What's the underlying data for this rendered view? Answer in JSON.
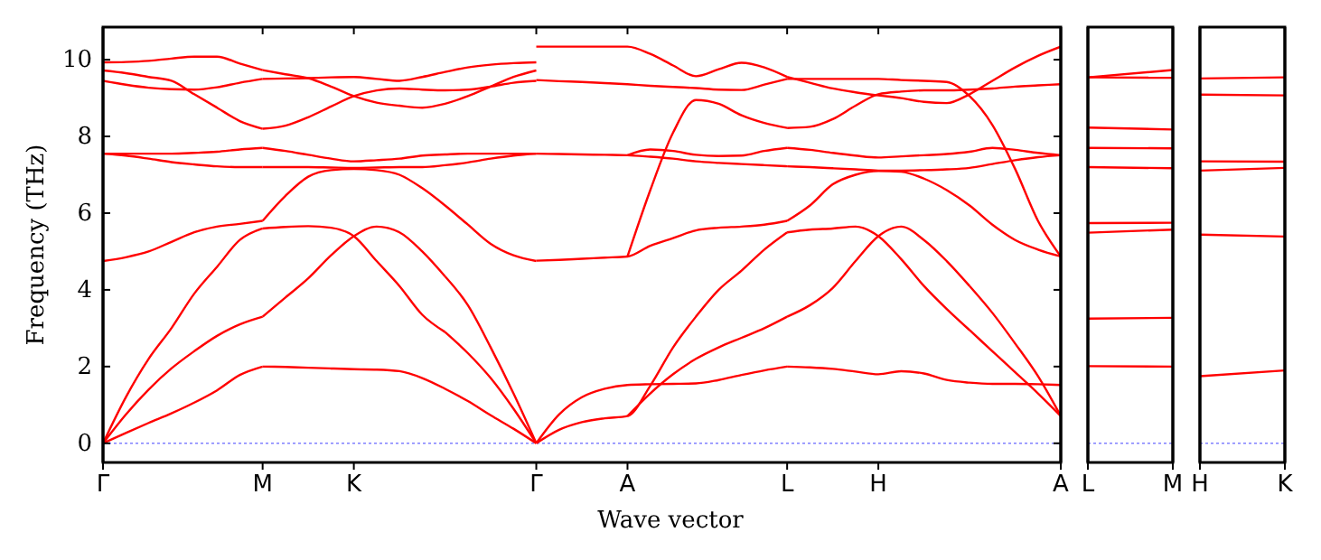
{
  "chart_data": [
    {
      "type": "line",
      "xlabel": "Wave vector",
      "ylabel": "Frequency (THz)",
      "ylim": [
        -0.5,
        10.85
      ],
      "yticks": [
        0,
        2,
        4,
        6,
        8,
        10
      ],
      "categories": [
        "Γ",
        null,
        null,
        null,
        null,
        null,
        null,
        "M",
        null,
        null,
        null,
        "K",
        null,
        null,
        null,
        null,
        null,
        null,
        null,
        "Γ",
        null,
        null,
        null,
        "A",
        null,
        null,
        null,
        null,
        null,
        null,
        "L",
        null,
        null,
        null,
        "H",
        null,
        null,
        null,
        null,
        null,
        null,
        null,
        "A"
      ],
      "ref_lines": [
        {
          "axis": "y",
          "value": 0,
          "color": "#8080ff",
          "line_style": "dotted"
        }
      ],
      "series": [
        {
          "color": "#ff0000",
          "values": [
            0,
            0.27,
            0.53,
            0.78,
            1.06,
            1.38,
            1.78,
            2.0,
            null,
            null,
            null,
            null,
            null,
            null,
            null,
            null,
            null,
            null,
            null,
            null,
            null,
            null,
            null,
            null,
            null,
            null,
            null,
            null,
            null,
            null,
            null,
            null,
            null,
            null,
            null,
            null,
            null,
            null,
            null,
            null,
            null,
            null,
            null
          ]
        },
        {
          "color": "#ff0000",
          "values": [
            0,
            0.75,
            1.4,
            1.95,
            2.4,
            2.8,
            3.1,
            3.3,
            null,
            null,
            null,
            null,
            null,
            null,
            null,
            null,
            null,
            null,
            null,
            null,
            null,
            null,
            null,
            null,
            null,
            null,
            null,
            null,
            null,
            null,
            null,
            null,
            null,
            null,
            null,
            null,
            null,
            null,
            null,
            null,
            null,
            null,
            null
          ]
        },
        {
          "color": "#ff0000",
          "values": [
            0,
            1.2,
            2.2,
            3.0,
            3.9,
            4.6,
            5.3,
            5.6,
            null,
            null,
            null,
            null,
            null,
            null,
            null,
            null,
            null,
            null,
            null,
            null,
            null,
            null,
            null,
            null,
            null,
            null,
            null,
            null,
            null,
            null,
            null,
            null,
            null,
            null,
            null,
            null,
            null,
            null,
            null,
            null,
            null,
            null,
            null
          ]
        },
        {
          "color": "#ff0000",
          "values": [
            4.75,
            4.85,
            5.0,
            5.25,
            5.5,
            5.65,
            5.72,
            5.8,
            null,
            null,
            null,
            null,
            null,
            null,
            null,
            null,
            null,
            null,
            null,
            null,
            null,
            null,
            null,
            null,
            null,
            null,
            null,
            null,
            null,
            null,
            null,
            null,
            null,
            null,
            null,
            null,
            null,
            null,
            null,
            null,
            null,
            null,
            null
          ]
        },
        {
          "color": "#ff0000",
          "values": [
            7.55,
            7.5,
            7.42,
            7.33,
            7.27,
            7.22,
            7.2,
            7.2,
            null,
            null,
            null,
            null,
            null,
            null,
            null,
            null,
            null,
            null,
            null,
            null,
            null,
            null,
            null,
            null,
            null,
            null,
            null,
            null,
            null,
            null,
            null,
            null,
            null,
            null,
            null,
            null,
            null,
            null,
            null,
            null,
            null,
            null,
            null
          ]
        },
        {
          "color": "#ff0000",
          "values": [
            7.55,
            7.55,
            7.55,
            7.55,
            7.57,
            7.6,
            7.66,
            7.7,
            null,
            null,
            null,
            null,
            null,
            null,
            null,
            null,
            null,
            null,
            null,
            null,
            null,
            null,
            null,
            null,
            null,
            null,
            null,
            null,
            null,
            null,
            null,
            null,
            null,
            null,
            null,
            null,
            null,
            null,
            null,
            null,
            null,
            null,
            null
          ]
        },
        {
          "color": "#ff0000",
          "values": [
            9.72,
            9.65,
            9.55,
            9.45,
            9.1,
            8.75,
            8.4,
            8.2,
            null,
            null,
            null,
            null,
            null,
            null,
            null,
            null,
            null,
            null,
            null,
            null,
            null,
            null,
            null,
            null,
            null,
            null,
            null,
            null,
            null,
            null,
            null,
            null,
            null,
            null,
            null,
            null,
            null,
            null,
            null,
            null,
            null,
            null,
            null
          ]
        },
        {
          "color": "#ff0000",
          "values": [
            9.45,
            9.35,
            9.27,
            9.23,
            9.22,
            9.28,
            9.4,
            9.5,
            null,
            null,
            null,
            null,
            null,
            null,
            null,
            null,
            null,
            null,
            null,
            null,
            null,
            null,
            null,
            null,
            null,
            null,
            null,
            null,
            null,
            null,
            null,
            null,
            null,
            null,
            null,
            null,
            null,
            null,
            null,
            null,
            null,
            null,
            null
          ]
        },
        {
          "color": "#ff0000",
          "values": [
            9.93,
            9.94,
            9.97,
            10.03,
            10.08,
            10.08,
            9.9,
            9.73,
            null,
            null,
            null,
            null,
            null,
            null,
            null,
            null,
            null,
            null,
            null,
            null,
            null,
            null,
            null,
            null,
            null,
            null,
            null,
            null,
            null,
            null,
            null,
            null,
            null,
            null,
            null,
            null,
            null,
            null,
            null,
            null,
            null,
            null,
            null
          ]
        },
        {
          "color": "#ff0000",
          "values": [
            null,
            null,
            null,
            null,
            null,
            null,
            null,
            2.0,
            1.99,
            1.97,
            1.95,
            1.93,
            1.92,
            1.88,
            1.7,
            1.42,
            1.1,
            0.73,
            0.38,
            0,
            null,
            null,
            null,
            null,
            null,
            null,
            null,
            null,
            null,
            null,
            null,
            null,
            null,
            null,
            null,
            null,
            null,
            null,
            null,
            null,
            null,
            null,
            null
          ]
        },
        {
          "color": "#ff0000",
          "values": [
            null,
            null,
            null,
            null,
            null,
            null,
            null,
            3.3,
            3.8,
            4.3,
            4.9,
            5.4,
            5.65,
            5.5,
            5.0,
            4.35,
            null,
            null,
            null,
            null,
            null,
            null,
            null,
            null,
            null,
            null,
            null,
            null,
            null,
            null,
            null,
            null,
            null,
            null,
            null,
            null,
            null,
            null,
            null,
            null,
            null,
            null,
            null
          ]
        },
        {
          "color": "#ff0000",
          "values": [
            null,
            null,
            null,
            null,
            null,
            null,
            null,
            null,
            null,
            null,
            null,
            null,
            null,
            null,
            null,
            4.35,
            3.6,
            2.5,
            1.3,
            0,
            null,
            null,
            null,
            null,
            null,
            null,
            null,
            null,
            null,
            null,
            null,
            null,
            null,
            null,
            null,
            null,
            null,
            null,
            null,
            null,
            null,
            null,
            null
          ]
        },
        {
          "color": "#ff0000",
          "values": [
            null,
            null,
            null,
            null,
            null,
            null,
            null,
            5.6,
            5.64,
            5.66,
            5.62,
            5.4,
            4.75,
            4.1,
            3.35,
            2.9,
            null,
            null,
            null,
            null,
            null,
            null,
            null,
            null,
            null,
            null,
            null,
            null,
            null,
            null,
            null,
            null,
            null,
            null,
            null,
            null,
            null,
            null,
            null,
            null,
            null,
            null,
            null
          ]
        },
        {
          "color": "#ff0000",
          "values": [
            null,
            null,
            null,
            null,
            null,
            null,
            null,
            null,
            null,
            null,
            null,
            null,
            null,
            null,
            null,
            2.9,
            2.35,
            1.7,
            0.9,
            0,
            null,
            null,
            null,
            null,
            null,
            null,
            null,
            null,
            null,
            null,
            null,
            null,
            null,
            null,
            null,
            null,
            null,
            null,
            null,
            null,
            null,
            null,
            null
          ]
        },
        {
          "color": "#ff0000",
          "values": [
            null,
            null,
            null,
            null,
            null,
            null,
            null,
            5.8,
            6.45,
            6.95,
            7.12,
            7.15,
            7.12,
            7.0,
            6.65,
            6.2,
            5.7,
            5.2,
            4.9,
            4.75,
            null,
            null,
            null,
            null,
            null,
            null,
            null,
            null,
            null,
            null,
            null,
            null,
            null,
            null,
            null,
            null,
            null,
            null,
            null,
            null,
            null,
            null,
            null
          ]
        },
        {
          "color": "#ff0000",
          "values": [
            null,
            null,
            null,
            null,
            null,
            null,
            null,
            7.2,
            7.2,
            7.2,
            7.19,
            7.18,
            7.19,
            7.2,
            7.2,
            7.25,
            7.32,
            7.42,
            7.5,
            7.55,
            null,
            null,
            null,
            null,
            null,
            null,
            null,
            null,
            null,
            null,
            null,
            null,
            null,
            null,
            null,
            null,
            null,
            null,
            null,
            null,
            null,
            null,
            null
          ]
        },
        {
          "color": "#ff0000",
          "values": [
            null,
            null,
            null,
            null,
            null,
            null,
            null,
            7.7,
            7.62,
            7.52,
            7.42,
            7.35,
            7.38,
            7.42,
            7.5,
            7.53,
            7.55,
            7.55,
            7.55,
            7.55,
            null,
            null,
            null,
            null,
            null,
            null,
            null,
            null,
            null,
            null,
            null,
            null,
            null,
            null,
            null,
            null,
            null,
            null,
            null,
            null,
            null,
            null,
            null
          ]
        },
        {
          "color": "#ff0000",
          "values": [
            null,
            null,
            null,
            null,
            null,
            null,
            null,
            8.2,
            8.28,
            8.5,
            8.78,
            9.05,
            9.2,
            9.25,
            9.22,
            9.2,
            9.22,
            9.3,
            9.4,
            9.45,
            null,
            null,
            null,
            null,
            null,
            null,
            null,
            null,
            null,
            null,
            null,
            null,
            null,
            null,
            null,
            null,
            null,
            null,
            null,
            null,
            null,
            null,
            null
          ]
        },
        {
          "color": "#ff0000",
          "values": [
            null,
            null,
            null,
            null,
            null,
            null,
            null,
            9.5,
            9.51,
            9.52,
            9.54,
            9.55,
            9.5,
            9.45,
            9.55,
            9.68,
            9.8,
            9.87,
            9.91,
            9.93,
            null,
            null,
            null,
            null,
            null,
            null,
            null,
            null,
            null,
            null,
            null,
            null,
            null,
            null,
            null,
            null,
            null,
            null,
            null,
            null,
            null,
            null,
            null
          ]
        },
        {
          "color": "#ff0000",
          "values": [
            null,
            null,
            null,
            null,
            null,
            null,
            null,
            9.73,
            9.62,
            9.52,
            9.3,
            9.05,
            8.88,
            8.8,
            8.75,
            8.85,
            9.05,
            9.3,
            9.55,
            9.72,
            null,
            null,
            null,
            null,
            null,
            null,
            null,
            null,
            null,
            null,
            null,
            null,
            null,
            null,
            null,
            null,
            null,
            null,
            null,
            null,
            null,
            null,
            null
          ]
        },
        {
          "color": "#ff0000",
          "values": [
            null,
            null,
            null,
            null,
            null,
            null,
            null,
            null,
            null,
            null,
            null,
            null,
            null,
            null,
            null,
            null,
            null,
            null,
            null,
            0,
            0.75,
            1.2,
            1.42,
            1.52,
            1.54,
            1.55,
            1.56,
            1.65,
            1.78,
            1.9,
            2.0,
            null,
            null,
            null,
            null,
            null,
            null,
            null,
            null,
            null,
            null,
            null,
            null
          ]
        },
        {
          "color": "#ff0000",
          "values": [
            null,
            null,
            null,
            null,
            null,
            null,
            null,
            null,
            null,
            null,
            null,
            null,
            null,
            null,
            null,
            null,
            null,
            null,
            null,
            0,
            0.35,
            0.55,
            0.65,
            0.71,
            1.5,
            2.5,
            3.3,
            4.0,
            4.5,
            5.05,
            5.5,
            null,
            null,
            null,
            null,
            null,
            null,
            null,
            null,
            null,
            null,
            null,
            null
          ]
        },
        {
          "color": "#ff0000",
          "values": [
            null,
            null,
            null,
            null,
            null,
            null,
            null,
            null,
            null,
            null,
            null,
            null,
            null,
            null,
            null,
            null,
            null,
            null,
            null,
            4.76,
            4.78,
            4.81,
            4.84,
            4.87,
            5.15,
            5.35,
            5.55,
            5.62,
            5.65,
            5.7,
            5.8,
            null,
            null,
            null,
            null,
            null,
            null,
            null,
            null,
            null,
            null,
            null,
            null
          ]
        },
        {
          "color": "#ff0000",
          "values": [
            null,
            null,
            null,
            null,
            null,
            null,
            null,
            null,
            null,
            null,
            null,
            null,
            null,
            null,
            null,
            null,
            null,
            null,
            null,
            7.55,
            7.54,
            7.53,
            7.52,
            7.51,
            7.47,
            7.42,
            7.35,
            7.31,
            7.28,
            7.25,
            7.22,
            null,
            null,
            null,
            null,
            null,
            null,
            null,
            null,
            null,
            null,
            null,
            null
          ]
        },
        {
          "color": "#ff0000",
          "values": [
            null,
            null,
            null,
            null,
            null,
            null,
            null,
            null,
            null,
            null,
            null,
            null,
            null,
            null,
            null,
            null,
            null,
            null,
            null,
            9.47,
            9.44,
            9.42,
            9.39,
            9.36,
            9.32,
            9.29,
            9.26,
            9.22,
            9.21,
            9.35,
            9.5,
            null,
            null,
            null,
            null,
            null,
            null,
            null,
            null,
            null,
            null,
            null,
            null
          ]
        },
        {
          "color": "#ff0000",
          "values": [
            null,
            null,
            null,
            null,
            null,
            null,
            null,
            null,
            null,
            null,
            null,
            null,
            null,
            null,
            null,
            null,
            null,
            null,
            null,
            10.34,
            10.34,
            10.34,
            10.34,
            10.34,
            10.15,
            9.85,
            9.57,
            9.75,
            9.92,
            9.8,
            9.55,
            null,
            null,
            null,
            null,
            null,
            null,
            null,
            null,
            null,
            null,
            null,
            null
          ]
        },
        {
          "color": "#ff0000",
          "values": [
            null,
            null,
            null,
            null,
            null,
            null,
            null,
            null,
            null,
            null,
            null,
            null,
            null,
            null,
            null,
            null,
            null,
            null,
            null,
            null,
            null,
            null,
            null,
            0.71,
            1.3,
            1.8,
            2.2,
            2.5,
            2.75,
            3.0,
            3.3,
            null,
            null,
            null,
            null,
            null,
            null,
            null,
            null,
            null,
            null,
            null,
            null
          ]
        },
        {
          "color": "#ff0000",
          "values": [
            null,
            null,
            null,
            null,
            null,
            null,
            null,
            null,
            null,
            null,
            null,
            null,
            null,
            null,
            null,
            null,
            null,
            null,
            null,
            null,
            null,
            null,
            null,
            4.87,
            6.6,
            8.1,
            8.95,
            8.85,
            8.55,
            8.35,
            8.22,
            null,
            null,
            null,
            null,
            null,
            null,
            null,
            null,
            null,
            null,
            null,
            null
          ]
        },
        {
          "color": "#ff0000",
          "values": [
            null,
            null,
            null,
            null,
            null,
            null,
            null,
            null,
            null,
            null,
            null,
            null,
            null,
            null,
            null,
            null,
            null,
            null,
            null,
            null,
            null,
            null,
            null,
            7.51,
            7.66,
            7.62,
            7.52,
            7.49,
            7.5,
            7.62,
            7.7,
            null,
            null,
            null,
            null,
            null,
            null,
            null,
            null,
            null,
            null,
            null,
            null
          ]
        },
        {
          "color": "#ff0000",
          "values": [
            null,
            null,
            null,
            null,
            null,
            null,
            null,
            null,
            null,
            null,
            null,
            null,
            null,
            null,
            null,
            null,
            null,
            null,
            null,
            null,
            null,
            null,
            null,
            null,
            null,
            null,
            null,
            null,
            null,
            null,
            2.0,
            1.98,
            1.94,
            1.87,
            1.8,
            1.88,
            1.82,
            1.65,
            1.58,
            1.55,
            1.55,
            1.54,
            1.52
          ]
        },
        {
          "color": "#ff0000",
          "values": [
            null,
            null,
            null,
            null,
            null,
            null,
            null,
            null,
            null,
            null,
            null,
            null,
            null,
            null,
            null,
            null,
            null,
            null,
            null,
            null,
            null,
            null,
            null,
            null,
            null,
            null,
            null,
            null,
            null,
            null,
            5.5,
            5.57,
            5.6,
            5.65,
            5.4,
            4.8,
            4.1,
            3.5,
            2.95,
            null,
            null,
            null,
            null
          ]
        },
        {
          "color": "#ff0000",
          "values": [
            null,
            null,
            null,
            null,
            null,
            null,
            null,
            null,
            null,
            null,
            null,
            null,
            null,
            null,
            null,
            null,
            null,
            null,
            null,
            null,
            null,
            null,
            null,
            null,
            null,
            null,
            null,
            null,
            null,
            null,
            null,
            null,
            null,
            null,
            null,
            null,
            null,
            null,
            2.95,
            2.4,
            1.85,
            1.3,
            0.71
          ]
        },
        {
          "color": "#ff0000",
          "values": [
            null,
            null,
            null,
            null,
            null,
            null,
            null,
            null,
            null,
            null,
            null,
            null,
            null,
            null,
            null,
            null,
            null,
            null,
            null,
            null,
            null,
            null,
            null,
            null,
            null,
            null,
            null,
            null,
            null,
            null,
            3.3,
            3.6,
            4.05,
            4.75,
            5.4,
            5.65,
            5.3,
            4.75,
            4.1,
            null,
            null,
            null,
            null
          ]
        },
        {
          "color": "#ff0000",
          "values": [
            null,
            null,
            null,
            null,
            null,
            null,
            null,
            null,
            null,
            null,
            null,
            null,
            null,
            null,
            null,
            null,
            null,
            null,
            null,
            null,
            null,
            null,
            null,
            null,
            null,
            null,
            null,
            null,
            null,
            null,
            null,
            null,
            null,
            null,
            null,
            null,
            null,
            null,
            4.1,
            3.4,
            2.6,
            1.75,
            0.71
          ]
        },
        {
          "color": "#ff0000",
          "values": [
            null,
            null,
            null,
            null,
            null,
            null,
            null,
            null,
            null,
            null,
            null,
            null,
            null,
            null,
            null,
            null,
            null,
            null,
            null,
            null,
            null,
            null,
            null,
            null,
            null,
            null,
            null,
            null,
            null,
            null,
            5.8,
            6.2,
            6.75,
            7.0,
            7.1,
            7.08,
            6.9,
            6.6,
            6.2,
            5.7,
            5.3,
            5.05,
            4.87
          ]
        },
        {
          "color": "#ff0000",
          "values": [
            null,
            null,
            null,
            null,
            null,
            null,
            null,
            null,
            null,
            null,
            null,
            null,
            null,
            null,
            null,
            null,
            null,
            null,
            null,
            null,
            null,
            null,
            null,
            null,
            null,
            null,
            null,
            null,
            null,
            null,
            8.22,
            8.25,
            8.45,
            8.8,
            9.1,
            9.17,
            9.2,
            9.2,
            9.22,
            9.25,
            9.3,
            9.33,
            9.36
          ]
        },
        {
          "color": "#ff0000",
          "values": [
            null,
            null,
            null,
            null,
            null,
            null,
            null,
            null,
            null,
            null,
            null,
            null,
            null,
            null,
            null,
            null,
            null,
            null,
            null,
            null,
            null,
            null,
            null,
            null,
            null,
            null,
            null,
            null,
            null,
            null,
            7.22,
            7.2,
            7.17,
            7.14,
            7.11,
            7.11,
            7.12,
            7.14,
            7.18,
            7.28,
            7.38,
            7.46,
            7.51
          ]
        },
        {
          "color": "#ff0000",
          "values": [
            null,
            null,
            null,
            null,
            null,
            null,
            null,
            null,
            null,
            null,
            null,
            null,
            null,
            null,
            null,
            null,
            null,
            null,
            null,
            null,
            null,
            null,
            null,
            null,
            null,
            null,
            null,
            null,
            null,
            null,
            7.7,
            7.65,
            7.57,
            7.5,
            7.45,
            7.48,
            7.51,
            7.54,
            7.6,
            7.7,
            7.65,
            7.57,
            7.51
          ]
        },
        {
          "color": "#ff0000",
          "values": [
            null,
            null,
            null,
            null,
            null,
            null,
            null,
            null,
            null,
            null,
            null,
            null,
            null,
            null,
            null,
            null,
            null,
            null,
            null,
            null,
            null,
            null,
            null,
            null,
            null,
            null,
            null,
            null,
            null,
            null,
            9.5,
            9.5,
            9.5,
            9.5,
            9.5,
            9.47,
            9.45,
            9.42,
            9.05,
            8.3,
            7.15,
            5.8,
            4.87
          ]
        },
        {
          "color": "#ff0000",
          "values": [
            null,
            null,
            null,
            null,
            null,
            null,
            null,
            null,
            null,
            null,
            null,
            null,
            null,
            null,
            null,
            null,
            null,
            null,
            null,
            null,
            null,
            null,
            null,
            null,
            null,
            null,
            null,
            null,
            null,
            null,
            9.55,
            9.4,
            9.25,
            9.15,
            9.07,
            9.0,
            8.9,
            8.87,
            9.1,
            9.45,
            9.8,
            10.1,
            10.34
          ]
        }
      ]
    },
    {
      "type": "line",
      "ylim": [
        -0.5,
        10.85
      ],
      "yticks": [
        0,
        2,
        4,
        6,
        8,
        10
      ],
      "tick_labels": "x",
      "categories": [
        "L",
        "M"
      ],
      "ref_lines": [
        {
          "axis": "y",
          "value": 0,
          "color": "#8080ff",
          "line_style": "dotted"
        }
      ],
      "series": [
        {
          "color": "#ff0000",
          "values": [
            9.54,
            9.73
          ]
        },
        {
          "color": "#ff0000",
          "values": [
            9.54,
            9.53
          ]
        },
        {
          "color": "#ff0000",
          "values": [
            8.23,
            8.18
          ]
        },
        {
          "color": "#ff0000",
          "values": [
            7.7,
            7.69
          ]
        },
        {
          "color": "#ff0000",
          "values": [
            7.2,
            7.17
          ]
        },
        {
          "color": "#ff0000",
          "values": [
            5.74,
            5.75
          ]
        },
        {
          "color": "#ff0000",
          "values": [
            5.49,
            5.57
          ]
        },
        {
          "color": "#ff0000",
          "values": [
            3.25,
            3.27
          ]
        },
        {
          "color": "#ff0000",
          "values": [
            2.01,
            2.0
          ]
        }
      ]
    },
    {
      "type": "line",
      "ylim": [
        -0.5,
        10.85
      ],
      "yticks": [
        0,
        2,
        4,
        6,
        8,
        10
      ],
      "tick_labels": "x",
      "categories": [
        "H",
        "K"
      ],
      "ref_lines": [
        {
          "axis": "y",
          "value": 0,
          "color": "#8080ff",
          "line_style": "dotted"
        }
      ],
      "series": [
        {
          "color": "#ff0000",
          "values": [
            9.51,
            9.54
          ]
        },
        {
          "color": "#ff0000",
          "values": [
            9.09,
            9.07
          ]
        },
        {
          "color": "#ff0000",
          "values": [
            7.35,
            7.34
          ]
        },
        {
          "color": "#ff0000",
          "values": [
            7.11,
            7.18
          ]
        },
        {
          "color": "#ff0000",
          "values": [
            5.44,
            5.39
          ]
        },
        {
          "color": "#ff0000",
          "values": [
            1.75,
            1.9
          ]
        }
      ]
    }
  ]
}
